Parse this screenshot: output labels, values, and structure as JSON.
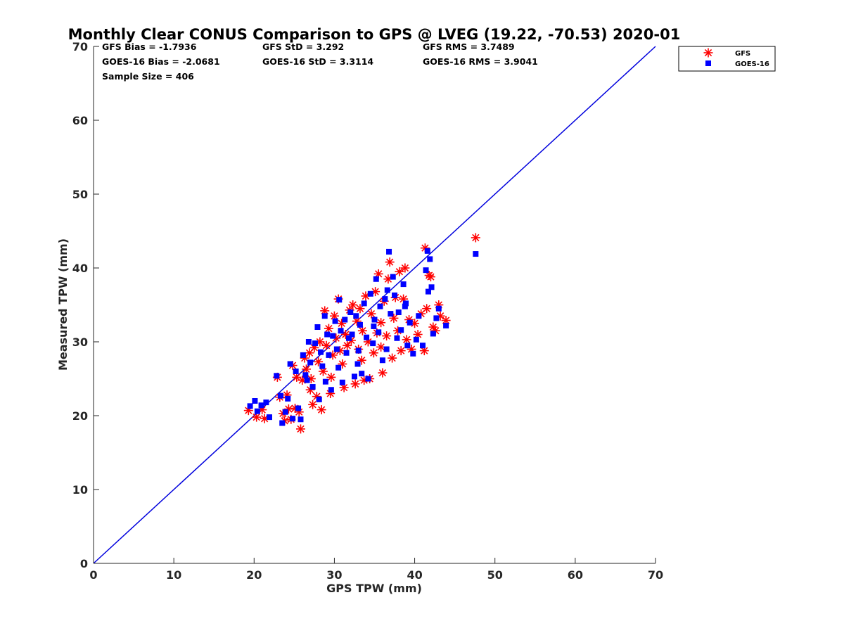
{
  "chart_data": {
    "type": "scatter",
    "title": "Monthly Clear CONUS Comparison to GPS @ LVEG (19.22, -70.53) 2020-01",
    "xlabel": "GPS TPW (mm)",
    "ylabel": "Measured TPW (mm)",
    "xlim": [
      0,
      70
    ],
    "ylim": [
      0,
      70
    ],
    "xticks": [
      "0",
      "10",
      "20",
      "30",
      "40",
      "50",
      "60",
      "70"
    ],
    "yticks": [
      "0",
      "10",
      "20",
      "30",
      "40",
      "50",
      "60",
      "70"
    ],
    "grid": false,
    "legend_position": "top-right outside",
    "stats": {
      "gfs_bias": "GFS Bias = -1.7936",
      "gfs_std": "GFS StD = 3.292",
      "gfs_rms": "GFS RMS = 3.7489",
      "goes_bias": "GOES-16 Bias = -2.0681",
      "goes_std": "GOES-16 StD = 3.3114",
      "goes_rms": "GOES-16 RMS = 3.9041",
      "sample_size": "Sample Size = 406"
    },
    "reference_line": {
      "x": [
        0,
        70
      ],
      "y": [
        0,
        70
      ],
      "color": "#0000dd"
    },
    "series": [
      {
        "name": "GFS",
        "marker": "asterisk",
        "color": "#ff0000",
        "points": [
          [
            19.3,
            20.7
          ],
          [
            20.3,
            19.8
          ],
          [
            21.0,
            20.8
          ],
          [
            21.3,
            19.6
          ],
          [
            22.9,
            25.2
          ],
          [
            23.2,
            22.5
          ],
          [
            23.6,
            20.3
          ],
          [
            23.8,
            19.3
          ],
          [
            24.1,
            22.8
          ],
          [
            24.3,
            20.9
          ],
          [
            24.6,
            19.5
          ],
          [
            24.8,
            26.8
          ],
          [
            25.1,
            21.0
          ],
          [
            25.3,
            25.2
          ],
          [
            25.6,
            20.5
          ],
          [
            25.8,
            18.2
          ],
          [
            26.0,
            24.8
          ],
          [
            26.3,
            27.8
          ],
          [
            26.5,
            26.3
          ],
          [
            26.9,
            28.5
          ],
          [
            27.1,
            25.0
          ],
          [
            27.3,
            21.5
          ],
          [
            27.5,
            29.2
          ],
          [
            27.8,
            22.6
          ],
          [
            28.0,
            27.3
          ],
          [
            28.2,
            30.0
          ],
          [
            28.4,
            20.8
          ],
          [
            28.6,
            26.0
          ],
          [
            28.8,
            34.2
          ],
          [
            29.0,
            29.5
          ],
          [
            29.3,
            31.8
          ],
          [
            29.5,
            23.0
          ],
          [
            29.8,
            28.2
          ],
          [
            30.0,
            33.5
          ],
          [
            30.2,
            30.5
          ],
          [
            30.5,
            35.8
          ],
          [
            30.7,
            28.8
          ],
          [
            30.9,
            32.5
          ],
          [
            31.2,
            23.8
          ],
          [
            31.4,
            31.0
          ],
          [
            31.6,
            29.5
          ],
          [
            31.9,
            34.3
          ],
          [
            32.1,
            30.2
          ],
          [
            32.3,
            35.0
          ],
          [
            32.6,
            24.3
          ],
          [
            32.8,
            32.8
          ],
          [
            33.0,
            29.0
          ],
          [
            33.2,
            34.5
          ],
          [
            33.5,
            31.5
          ],
          [
            33.7,
            24.8
          ],
          [
            33.9,
            36.2
          ],
          [
            34.2,
            30.0
          ],
          [
            34.4,
            25.0
          ],
          [
            34.6,
            33.8
          ],
          [
            34.9,
            28.5
          ],
          [
            35.1,
            36.8
          ],
          [
            35.3,
            31.2
          ],
          [
            35.5,
            39.2
          ],
          [
            35.8,
            29.3
          ],
          [
            36.0,
            25.8
          ],
          [
            36.2,
            35.5
          ],
          [
            36.5,
            30.8
          ],
          [
            36.7,
            38.5
          ],
          [
            36.9,
            40.8
          ],
          [
            37.2,
            27.8
          ],
          [
            37.4,
            33.2
          ],
          [
            37.6,
            36.0
          ],
          [
            37.9,
            31.5
          ],
          [
            38.1,
            39.5
          ],
          [
            38.3,
            28.8
          ],
          [
            38.6,
            35.8
          ],
          [
            38.8,
            40.0
          ],
          [
            39.0,
            30.3
          ],
          [
            39.3,
            33.0
          ],
          [
            39.6,
            29.0
          ],
          [
            40.0,
            32.5
          ],
          [
            40.4,
            31.0
          ],
          [
            40.8,
            33.8
          ],
          [
            41.2,
            28.8
          ],
          [
            41.5,
            34.5
          ],
          [
            41.3,
            42.7
          ],
          [
            41.8,
            39.0
          ],
          [
            42.0,
            38.8
          ],
          [
            42.3,
            32.0
          ],
          [
            42.6,
            31.5
          ],
          [
            43.0,
            35.0
          ],
          [
            43.2,
            33.5
          ],
          [
            43.9,
            32.9
          ],
          [
            47.6,
            44.1
          ],
          [
            27.0,
            23.5
          ],
          [
            29.6,
            25.2
          ],
          [
            31.0,
            27.0
          ],
          [
            33.4,
            27.5
          ],
          [
            35.8,
            32.6
          ]
        ]
      },
      {
        "name": "GOES-16",
        "marker": "square",
        "color": "#0000ff",
        "points": [
          [
            19.5,
            21.3
          ],
          [
            20.1,
            22.0
          ],
          [
            20.4,
            20.6
          ],
          [
            20.9,
            21.4
          ],
          [
            21.5,
            21.8
          ],
          [
            21.9,
            19.8
          ],
          [
            22.8,
            25.4
          ],
          [
            23.3,
            22.7
          ],
          [
            23.5,
            19.0
          ],
          [
            23.9,
            20.5
          ],
          [
            24.2,
            22.3
          ],
          [
            24.5,
            27.0
          ],
          [
            24.8,
            19.6
          ],
          [
            25.2,
            26.0
          ],
          [
            25.5,
            21.0
          ],
          [
            25.8,
            19.5
          ],
          [
            26.1,
            28.2
          ],
          [
            26.4,
            25.5
          ],
          [
            26.8,
            30.0
          ],
          [
            27.0,
            27.2
          ],
          [
            27.3,
            23.9
          ],
          [
            27.6,
            29.8
          ],
          [
            27.9,
            32.0
          ],
          [
            28.1,
            22.2
          ],
          [
            28.3,
            28.6
          ],
          [
            28.5,
            26.7
          ],
          [
            28.8,
            33.5
          ],
          [
            29.1,
            31.0
          ],
          [
            29.3,
            28.2
          ],
          [
            29.6,
            23.5
          ],
          [
            29.8,
            30.8
          ],
          [
            30.1,
            32.8
          ],
          [
            30.3,
            29.0
          ],
          [
            30.6,
            35.7
          ],
          [
            30.8,
            31.5
          ],
          [
            31.0,
            24.5
          ],
          [
            31.3,
            33.0
          ],
          [
            31.5,
            28.5
          ],
          [
            31.8,
            30.5
          ],
          [
            32.0,
            34.0
          ],
          [
            32.2,
            31.0
          ],
          [
            32.5,
            25.3
          ],
          [
            32.7,
            33.5
          ],
          [
            33.0,
            28.8
          ],
          [
            33.2,
            32.3
          ],
          [
            33.4,
            25.7
          ],
          [
            33.7,
            35.2
          ],
          [
            34.0,
            30.6
          ],
          [
            34.2,
            25.0
          ],
          [
            34.5,
            36.5
          ],
          [
            34.8,
            29.8
          ],
          [
            35.0,
            33.0
          ],
          [
            35.2,
            38.5
          ],
          [
            35.5,
            31.3
          ],
          [
            35.7,
            34.8
          ],
          [
            36.0,
            27.5
          ],
          [
            36.3,
            35.8
          ],
          [
            36.5,
            29.0
          ],
          [
            36.8,
            42.2
          ],
          [
            37.0,
            33.8
          ],
          [
            37.3,
            38.8
          ],
          [
            37.5,
            36.3
          ],
          [
            37.8,
            30.5
          ],
          [
            38.0,
            34.0
          ],
          [
            38.3,
            31.6
          ],
          [
            38.6,
            37.8
          ],
          [
            38.8,
            34.8
          ],
          [
            39.1,
            29.5
          ],
          [
            39.4,
            32.6
          ],
          [
            39.8,
            28.4
          ],
          [
            40.2,
            30.3
          ],
          [
            40.5,
            33.5
          ],
          [
            41.0,
            29.5
          ],
          [
            41.4,
            39.7
          ],
          [
            41.7,
            36.8
          ],
          [
            41.9,
            41.2
          ],
          [
            41.6,
            42.3
          ],
          [
            42.1,
            37.4
          ],
          [
            42.3,
            31.1
          ],
          [
            42.7,
            33.2
          ],
          [
            43.0,
            34.5
          ],
          [
            43.9,
            32.2
          ],
          [
            47.6,
            41.9
          ],
          [
            26.6,
            24.8
          ],
          [
            28.9,
            24.6
          ],
          [
            30.5,
            26.5
          ],
          [
            32.9,
            27.0
          ],
          [
            34.9,
            32.1
          ],
          [
            36.6,
            37.0
          ],
          [
            38.9,
            35.2
          ]
        ]
      }
    ]
  }
}
